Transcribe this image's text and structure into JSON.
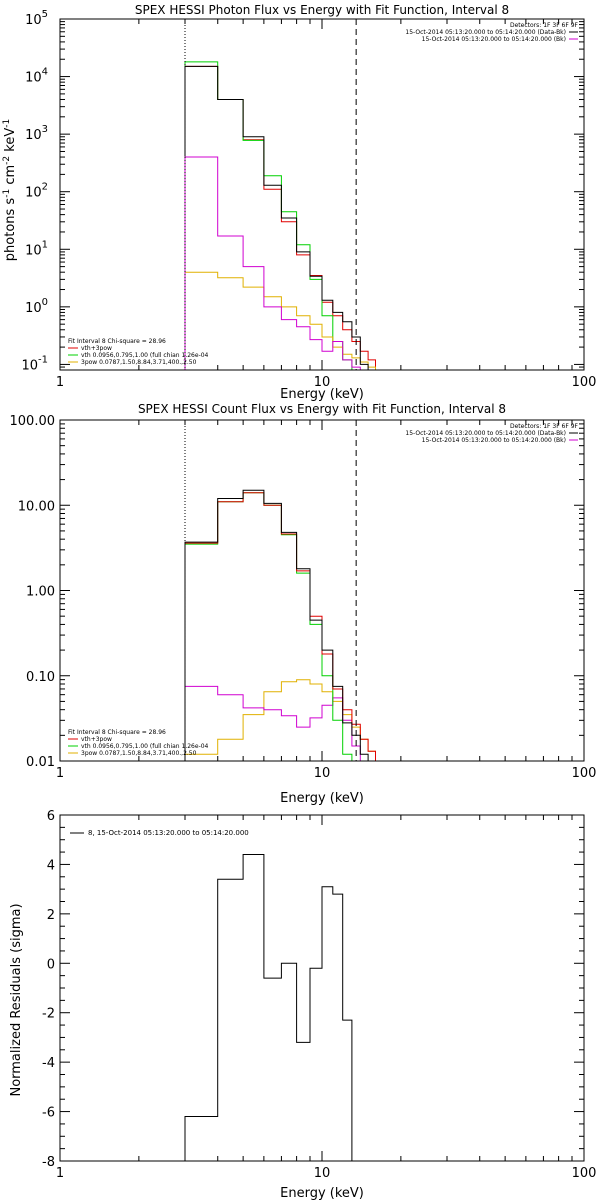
{
  "colors": {
    "background": "#ffffff",
    "frame": "#000000",
    "data": "#000000",
    "total_fit": "#e00000",
    "vth": "#00d000",
    "3pow": "#e0b000",
    "background_spectrum": "#d000d0"
  },
  "chart_data": [
    {
      "type": "line",
      "title": "SPEX HESSI Photon Flux vs Energy with Fit Function, Interval 8",
      "xlabel": "Energy (keV)",
      "ylabel_parts": [
        "photons s",
        "-1",
        " cm",
        "-2",
        " keV",
        "-1"
      ],
      "x_scale": "log",
      "y_scale": "log",
      "xlim": [
        1,
        100
      ],
      "ylim": [
        0.08,
        100000
      ],
      "x_ticks": [
        {
          "v": 1,
          "label": "1"
        },
        {
          "v": 10,
          "label": "10"
        },
        {
          "v": 100,
          "label": "100"
        }
      ],
      "y_ticks": [
        {
          "v": 0.1,
          "base": "10",
          "exp": "-1"
        },
        {
          "v": 1,
          "base": "10",
          "exp": "0"
        },
        {
          "v": 10,
          "base": "10",
          "exp": "1"
        },
        {
          "v": 100,
          "base": "10",
          "exp": "2"
        },
        {
          "v": 1000,
          "base": "10",
          "exp": "3"
        },
        {
          "v": 10000,
          "base": "10",
          "exp": "4"
        },
        {
          "v": 100000,
          "base": "10",
          "exp": "5"
        }
      ],
      "vlines": [
        {
          "x": 3.0,
          "style": "dotted"
        },
        {
          "x": 13.5,
          "style": "dashed"
        }
      ],
      "legend_tr": {
        "header": "Detectors: 1F 3F 6F 9F",
        "entries": [
          {
            "label": "15-Oct-2014 05:13:20.000 to 05:14:20.000 (Data-Bk)",
            "color_key": "data"
          },
          {
            "label": "15-Oct-2014 05:13:20.000 to 05:14:20.000 (Bk)",
            "color_key": "background_spectrum"
          }
        ]
      },
      "legend_bl": {
        "header": "Fit Interval 8   Chi-square = 28.96",
        "entries": [
          {
            "label": "vth+3pow",
            "color_key": "total_fit"
          },
          {
            "label": "vth 0.0956,0.795,1.00  (full chian 1.26e-04",
            "color_key": "vth"
          },
          {
            "label": "3pow 0.0787,1.50,8.84,3.71,400.,2.50",
            "color_key": "3pow"
          }
        ]
      },
      "edges": [
        3.0,
        4.0,
        5.0,
        6.0,
        7.0,
        8.0,
        9.0,
        10.0,
        11.0,
        12.0,
        13.0,
        14.0,
        15.0,
        16.0
      ],
      "series": [
        {
          "name": "vth+3pow",
          "color_key": "total_fit",
          "values": [
            15000,
            4000,
            800,
            110,
            30,
            8,
            3.5,
            1.2,
            0.7,
            0.4,
            0.25,
            0.17,
            0.12
          ]
        },
        {
          "name": "vth",
          "color_key": "vth",
          "values": [
            18000,
            4000,
            780,
            190,
            45,
            12,
            3.0,
            0.7,
            0.25,
            0.12,
            null,
            null,
            null
          ]
        },
        {
          "name": "3pow",
          "color_key": "3pow",
          "values": [
            4.0,
            3.2,
            2.2,
            1.5,
            1.0,
            0.7,
            0.5,
            0.3,
            0.2,
            0.15,
            0.13,
            0.11,
            0.09
          ]
        },
        {
          "name": "Data-Bk",
          "color_key": "data",
          "values": [
            15000,
            4000,
            900,
            130,
            35,
            9,
            3.4,
            1.3,
            0.8,
            0.55,
            0.3,
            0.1,
            null
          ]
        },
        {
          "name": "Bk",
          "color_key": "background_spectrum",
          "values": [
            400,
            17,
            5,
            1.0,
            0.6,
            0.45,
            0.27,
            0.17,
            0.25,
            0.12,
            0.09,
            null,
            null
          ]
        }
      ]
    },
    {
      "type": "line",
      "title": "SPEX HESSI Count Flux vs Energy with Fit Function, Interval 8",
      "xlabel": "Energy (keV)",
      "x_scale": "log",
      "y_scale": "log",
      "xlim": [
        1,
        100
      ],
      "ylim": [
        0.01,
        100
      ],
      "x_ticks": [
        {
          "v": 1,
          "label": "1"
        },
        {
          "v": 10,
          "label": "10"
        },
        {
          "v": 100,
          "label": "100"
        }
      ],
      "y_ticks": [
        {
          "v": 0.01,
          "label": "0.01"
        },
        {
          "v": 0.1,
          "label": "0.10"
        },
        {
          "v": 1,
          "label": "1.00"
        },
        {
          "v": 10,
          "label": "10.00"
        },
        {
          "v": 100,
          "label": "100.00"
        }
      ],
      "vlines": [
        {
          "x": 3.0,
          "style": "dotted"
        },
        {
          "x": 13.5,
          "style": "dashed"
        }
      ],
      "legend_tr": {
        "header": "Detectors: 1F 3F 6F 9F",
        "entries": [
          {
            "label": "15-Oct-2014 05:13:20.000 to 05:14:20.000 (Data-Bk)",
            "color_key": "data"
          },
          {
            "label": "15-Oct-2014 05:13:20.000 to 05:14:20.000 (Bk)",
            "color_key": "background_spectrum"
          }
        ]
      },
      "legend_bl": {
        "header": "Fit Interval 8   Chi-square = 28.96",
        "entries": [
          {
            "label": "vth+3pow",
            "color_key": "total_fit"
          },
          {
            "label": "vth 0.0956,0.795,1.00  (full chian 1.26e-04",
            "color_key": "vth"
          },
          {
            "label": "3pow 0.0787,1.50,8.84,3.71,400.,2.50",
            "color_key": "3pow"
          }
        ]
      },
      "edges": [
        3.0,
        4.0,
        5.0,
        6.0,
        7.0,
        8.0,
        9.0,
        10.0,
        11.0,
        12.0,
        13.0,
        14.0,
        15.0,
        16.0,
        17.0
      ],
      "series": [
        {
          "name": "3pow",
          "color_key": "3pow",
          "values": [
            0.012,
            0.018,
            0.035,
            0.065,
            0.085,
            0.09,
            0.08,
            0.065,
            0.05,
            0.035,
            0.025,
            0.018,
            0.013,
            0.01
          ]
        },
        {
          "name": "Bk",
          "color_key": "background_spectrum",
          "values": [
            0.075,
            0.06,
            0.042,
            0.04,
            0.034,
            0.025,
            0.032,
            0.045,
            0.055,
            0.03,
            0.015,
            null,
            null,
            null
          ]
        },
        {
          "name": "vth",
          "color_key": "vth",
          "values": [
            3.5,
            11,
            14,
            10,
            4.5,
            1.6,
            0.4,
            0.1,
            0.03,
            0.012,
            null,
            null,
            null,
            null
          ]
        },
        {
          "name": "vth+3pow",
          "color_key": "total_fit",
          "values": [
            3.6,
            11,
            14,
            10,
            4.6,
            1.7,
            0.5,
            0.18,
            0.07,
            0.04,
            0.027,
            0.018,
            0.013,
            null
          ]
        },
        {
          "name": "Data-Bk",
          "color_key": "data",
          "values": [
            3.7,
            12,
            15,
            10.5,
            4.8,
            1.8,
            0.45,
            0.2,
            0.075,
            0.028,
            0.02,
            0.012,
            null,
            null
          ]
        }
      ]
    },
    {
      "type": "line",
      "title": "",
      "xlabel": "Energy (keV)",
      "ylabel": "Normalized Residuals (sigma)",
      "x_scale": "log",
      "y_scale": "linear",
      "xlim": [
        1,
        100
      ],
      "ylim": [
        -8,
        6
      ],
      "x_ticks": [
        {
          "v": 1,
          "label": "1"
        },
        {
          "v": 10,
          "label": "10"
        },
        {
          "v": 100,
          "label": "100"
        }
      ],
      "y_ticks": [
        {
          "v": -8,
          "label": "-8"
        },
        {
          "v": -6,
          "label": "-6"
        },
        {
          "v": -4,
          "label": "-4"
        },
        {
          "v": -2,
          "label": "-2"
        },
        {
          "v": 0,
          "label": "0"
        },
        {
          "v": 2,
          "label": "2"
        },
        {
          "v": 4,
          "label": "4"
        },
        {
          "v": 6,
          "label": "6"
        }
      ],
      "legend_tl": {
        "entries": [
          {
            "label": "8, 15-Oct-2014 05:13:20.000 to 05:14:20.000",
            "color_key": "data"
          }
        ]
      },
      "edges": [
        3.0,
        4.0,
        5.0,
        6.0,
        7.0,
        8.0,
        9.0,
        10.0,
        11.0,
        12.0,
        13.0
      ],
      "series": [
        {
          "name": "residuals",
          "color_key": "data",
          "values": [
            -6.2,
            3.4,
            4.4,
            -0.6,
            0.0,
            -3.2,
            -0.2,
            3.1,
            2.8,
            -2.3
          ]
        }
      ]
    }
  ]
}
